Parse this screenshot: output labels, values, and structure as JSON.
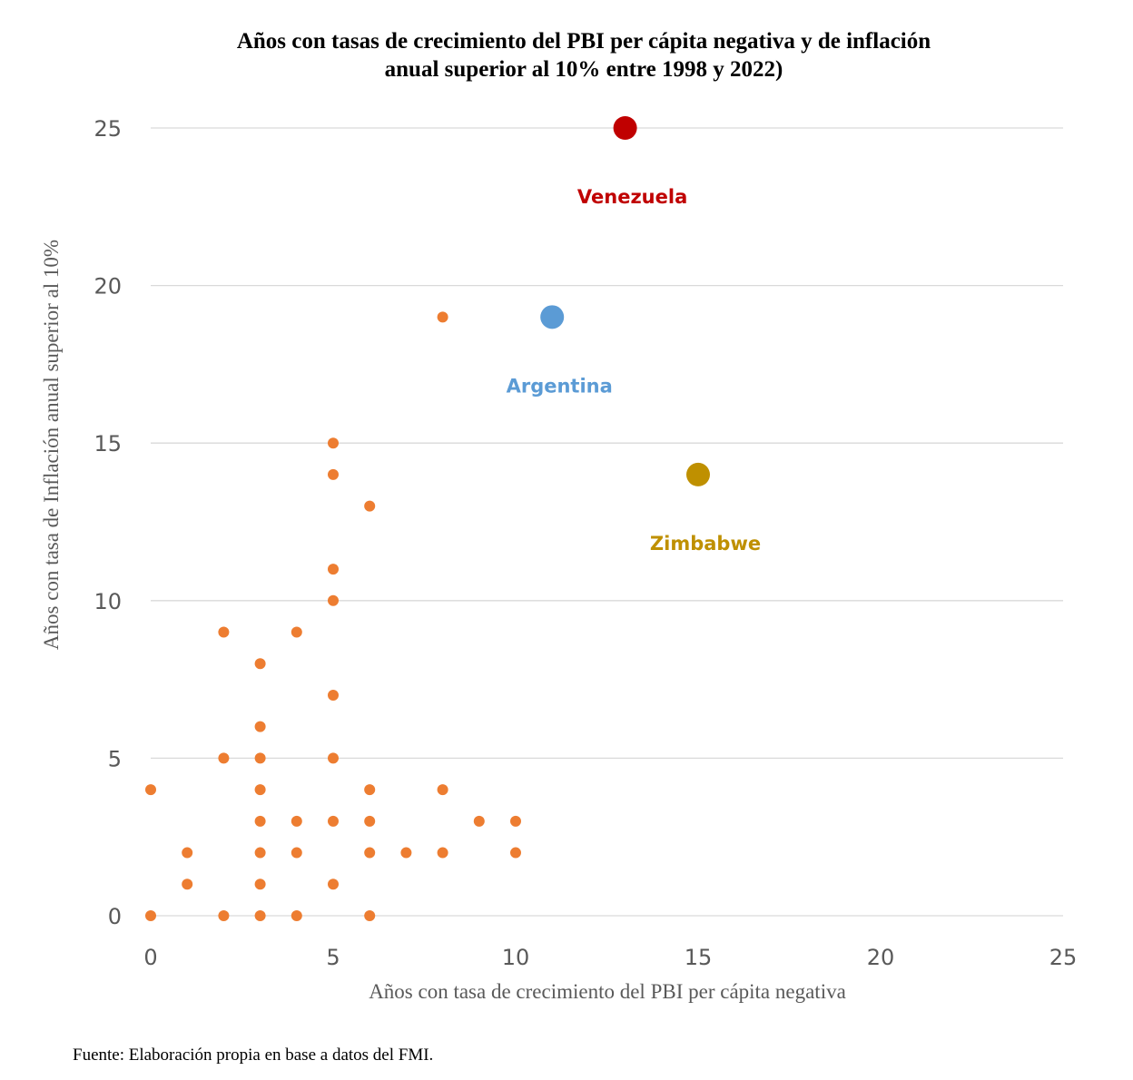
{
  "title_lines": [
    "Años con tasas de crecimiento del PBI per cápita negativa y de inflación",
    "anual superior al 10% entre 1998 y 2022)"
  ],
  "source": "Fuente: Elaboración propia en base a datos del FMI.",
  "chart_data": {
    "type": "scatter",
    "xlabel": "Años con tasa de crecimiento del PBI per cápita negativa",
    "ylabel": "Años con tasa de Inflación anual superior al 10%",
    "xlim": [
      0,
      25
    ],
    "ylim": [
      0,
      25
    ],
    "x_ticks": [
      0,
      5,
      10,
      15,
      20,
      25
    ],
    "y_ticks": [
      0,
      5,
      10,
      15,
      20,
      25
    ],
    "grid": "horizontal",
    "points_color": "#ED7D31",
    "points": [
      [
        0,
        0
      ],
      [
        0,
        4
      ],
      [
        1,
        1
      ],
      [
        1,
        2
      ],
      [
        2,
        0
      ],
      [
        2,
        5
      ],
      [
        2,
        9
      ],
      [
        3,
        0
      ],
      [
        3,
        1
      ],
      [
        3,
        2
      ],
      [
        3,
        3
      ],
      [
        3,
        4
      ],
      [
        3,
        5
      ],
      [
        3,
        6
      ],
      [
        3,
        8
      ],
      [
        4,
        0
      ],
      [
        4,
        2
      ],
      [
        4,
        3
      ],
      [
        4,
        9
      ],
      [
        5,
        1
      ],
      [
        5,
        3
      ],
      [
        5,
        5
      ],
      [
        5,
        7
      ],
      [
        5,
        10
      ],
      [
        5,
        11
      ],
      [
        5,
        14
      ],
      [
        5,
        15
      ],
      [
        6,
        0
      ],
      [
        6,
        2
      ],
      [
        6,
        3
      ],
      [
        6,
        4
      ],
      [
        6,
        13
      ],
      [
        7,
        2
      ],
      [
        8,
        2
      ],
      [
        8,
        4
      ],
      [
        8,
        19
      ],
      [
        9,
        3
      ],
      [
        10,
        2
      ],
      [
        10,
        3
      ]
    ],
    "highlighted": [
      {
        "label": "Venezuela",
        "x": 13,
        "y": 25,
        "color": "#C00000"
      },
      {
        "label": "Argentina",
        "x": 11,
        "y": 19,
        "color": "#5B9BD5"
      },
      {
        "label": "Zimbabwe",
        "x": 15,
        "y": 14,
        "color": "#BF9000"
      }
    ]
  }
}
